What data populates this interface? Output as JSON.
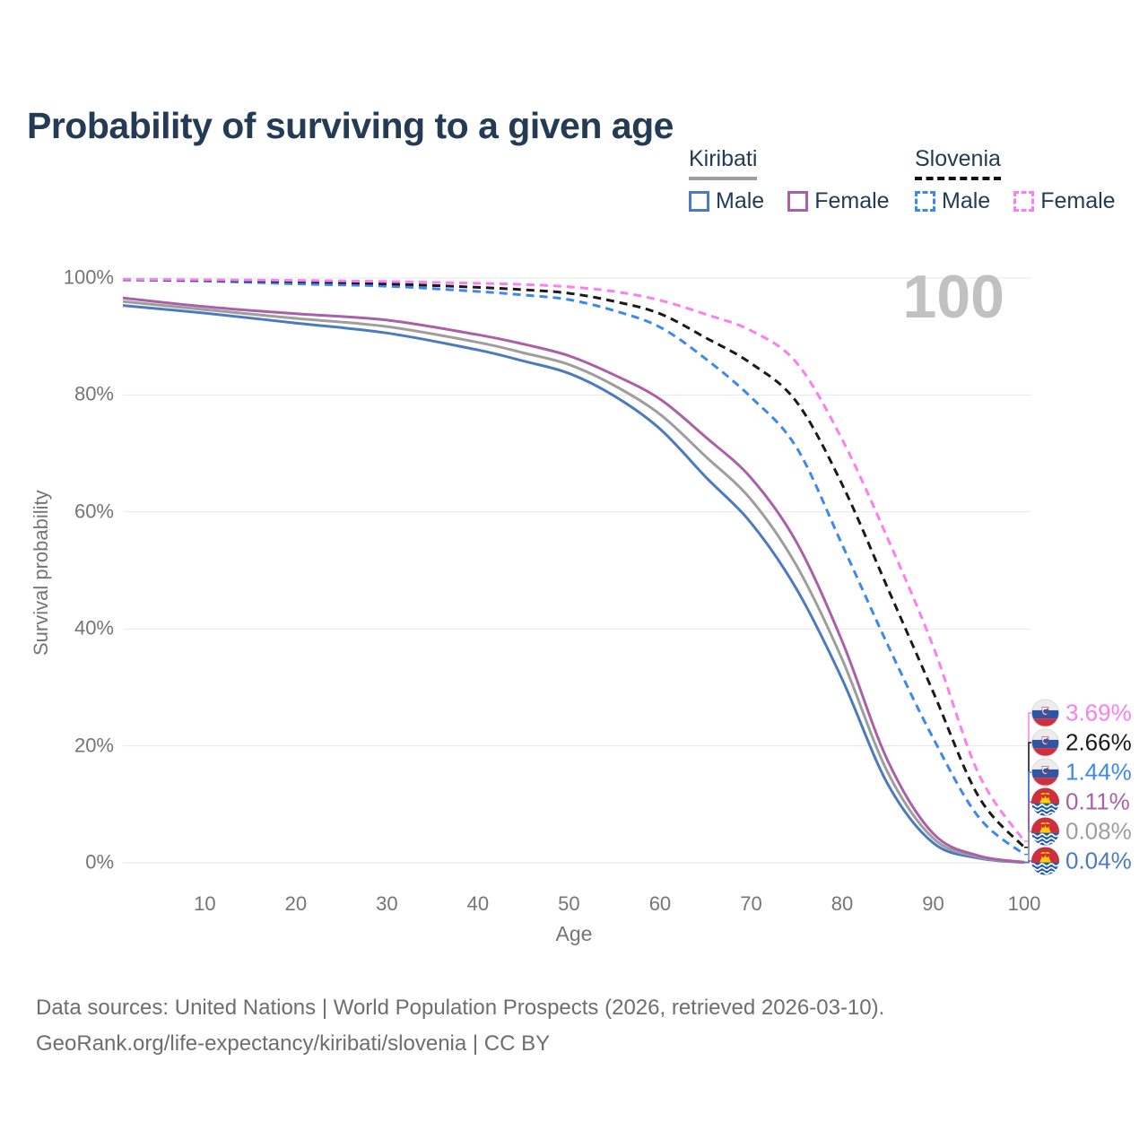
{
  "header": {
    "title": "Probability of surviving to a given age"
  },
  "watermark": "100",
  "legend": {
    "groups": [
      {
        "country": "Kiribati",
        "line_style": "solid",
        "items": [
          {
            "label": "Male",
            "color": "#4b7ac1"
          },
          {
            "label": "Female",
            "color": "#ab5fa8"
          }
        ]
      },
      {
        "country": "Slovenia",
        "line_style": "dashed",
        "items": [
          {
            "label": "Male",
            "color": "#3d87f0"
          },
          {
            "label": "Female",
            "color": "#fb7ef2"
          }
        ]
      }
    ]
  },
  "chart_data": {
    "type": "line",
    "title": "Probability of surviving to a given age",
    "xlabel": "Age",
    "ylabel": "Survival probability",
    "xlim": [
      1,
      100
    ],
    "ylim": [
      0,
      100
    ],
    "grid": "horizontal",
    "x_ticks": [
      {
        "label": "10",
        "v": 10
      },
      {
        "label": "20",
        "v": 20
      },
      {
        "label": "30",
        "v": 30
      },
      {
        "label": "40",
        "v": 40
      },
      {
        "label": "50",
        "v": 50
      },
      {
        "label": "60",
        "v": 60
      },
      {
        "label": "70",
        "v": 70
      },
      {
        "label": "80",
        "v": 80
      },
      {
        "label": "90",
        "v": 90
      },
      {
        "label": "100",
        "v": 100
      }
    ],
    "y_ticks": [
      {
        "label": "0%",
        "v": 0
      },
      {
        "label": "20%",
        "v": 20
      },
      {
        "label": "40%",
        "v": 40
      },
      {
        "label": "60%",
        "v": 60
      },
      {
        "label": "80%",
        "v": 80
      },
      {
        "label": "100%",
        "v": 100
      }
    ],
    "series": [
      {
        "id": "kiribati-male",
        "name": "Kiribati Male",
        "color": "#4b7ac1",
        "dash": false,
        "points": [
          [
            1,
            95.3
          ],
          [
            10,
            94.0
          ],
          [
            20,
            92.3
          ],
          [
            30,
            90.6
          ],
          [
            40,
            87.7
          ],
          [
            45,
            85.8
          ],
          [
            50,
            83.7
          ],
          [
            55,
            79.8
          ],
          [
            60,
            74.2
          ],
          [
            65,
            66.0
          ],
          [
            70,
            58.1
          ],
          [
            75,
            46.8
          ],
          [
            80,
            31.4
          ],
          [
            85,
            13.5
          ],
          [
            90,
            3.4
          ],
          [
            95,
            0.8
          ],
          [
            100,
            0.04
          ]
        ]
      },
      {
        "id": "kiribati-both",
        "name": "Kiribati",
        "color": "#9e9e9e",
        "dash": false,
        "points": [
          [
            1,
            96.0
          ],
          [
            10,
            94.6
          ],
          [
            20,
            93.1
          ],
          [
            30,
            91.7
          ],
          [
            40,
            89.0
          ],
          [
            45,
            87.2
          ],
          [
            50,
            85.2
          ],
          [
            55,
            81.6
          ],
          [
            60,
            76.7
          ],
          [
            65,
            69.5
          ],
          [
            70,
            62.1
          ],
          [
            75,
            50.8
          ],
          [
            80,
            34.8
          ],
          [
            85,
            15.5
          ],
          [
            90,
            4.2
          ],
          [
            95,
            1.0
          ],
          [
            100,
            0.08
          ]
        ]
      },
      {
        "id": "kiribati-female",
        "name": "Kiribati Female",
        "color": "#ab5fa8",
        "dash": false,
        "points": [
          [
            1,
            96.6
          ],
          [
            10,
            95.1
          ],
          [
            20,
            93.9
          ],
          [
            30,
            92.8
          ],
          [
            40,
            90.3
          ],
          [
            45,
            88.7
          ],
          [
            50,
            86.7
          ],
          [
            55,
            83.4
          ],
          [
            60,
            79.3
          ],
          [
            65,
            72.8
          ],
          [
            70,
            65.8
          ],
          [
            75,
            54.8
          ],
          [
            80,
            37.9
          ],
          [
            85,
            17.5
          ],
          [
            90,
            5.0
          ],
          [
            95,
            1.2
          ],
          [
            100,
            0.11
          ]
        ]
      },
      {
        "id": "slovenia-male",
        "name": "Slovenia Male",
        "color": "#3d87f0",
        "dash": true,
        "points": [
          [
            1,
            99.7
          ],
          [
            10,
            99.5
          ],
          [
            20,
            99.0
          ],
          [
            30,
            98.6
          ],
          [
            40,
            97.7
          ],
          [
            45,
            97.1
          ],
          [
            50,
            96.3
          ],
          [
            55,
            94.4
          ],
          [
            60,
            91.6
          ],
          [
            65,
            86.2
          ],
          [
            70,
            79.6
          ],
          [
            75,
            71.0
          ],
          [
            80,
            54.4
          ],
          [
            85,
            37.3
          ],
          [
            90,
            21.3
          ],
          [
            95,
            7.8
          ],
          [
            100,
            1.44
          ]
        ]
      },
      {
        "id": "slovenia-both",
        "name": "Slovenia",
        "color": "#1a1a1a",
        "dash": true,
        "points": [
          [
            1,
            99.75
          ],
          [
            10,
            99.6
          ],
          [
            20,
            99.4
          ],
          [
            30,
            99.0
          ],
          [
            40,
            98.4
          ],
          [
            45,
            98.0
          ],
          [
            50,
            97.4
          ],
          [
            55,
            96.0
          ],
          [
            60,
            93.9
          ],
          [
            65,
            89.8
          ],
          [
            70,
            85.4
          ],
          [
            75,
            78.8
          ],
          [
            80,
            64.7
          ],
          [
            85,
            47.0
          ],
          [
            90,
            29.2
          ],
          [
            95,
            11.3
          ],
          [
            100,
            2.66
          ]
        ]
      },
      {
        "id": "slovenia-female",
        "name": "Slovenia Female",
        "color": "#fb7ef2",
        "dash": true,
        "points": [
          [
            1,
            99.8
          ],
          [
            10,
            99.7
          ],
          [
            20,
            99.6
          ],
          [
            30,
            99.4
          ],
          [
            40,
            99.1
          ],
          [
            45,
            98.9
          ],
          [
            50,
            98.5
          ],
          [
            55,
            97.7
          ],
          [
            60,
            96.2
          ],
          [
            65,
            93.8
          ],
          [
            70,
            91.0
          ],
          [
            75,
            85.5
          ],
          [
            80,
            72.4
          ],
          [
            85,
            55.5
          ],
          [
            90,
            37.0
          ],
          [
            95,
            15.2
          ],
          [
            100,
            3.69
          ]
        ]
      }
    ],
    "end_labels": [
      {
        "series": "slovenia-female",
        "flag": "slovenia",
        "value": "3.69%",
        "pct": 3.69,
        "color": "#fb7ef2"
      },
      {
        "series": "slovenia-both",
        "flag": "slovenia",
        "value": "2.66%",
        "pct": 2.66,
        "color": "#1a1a1a"
      },
      {
        "series": "slovenia-male",
        "flag": "slovenia",
        "value": "1.44%",
        "pct": 1.44,
        "color": "#3d87f0"
      },
      {
        "series": "kiribati-female",
        "flag": "kiribati",
        "value": "0.11%",
        "pct": 0.11,
        "color": "#ab5fa8"
      },
      {
        "series": "kiribati-both",
        "flag": "kiribati",
        "value": "0.08%",
        "pct": 0.08,
        "color": "#9e9e9e"
      },
      {
        "series": "kiribati-male",
        "flag": "kiribati",
        "value": "0.04%",
        "pct": 0.04,
        "color": "#4b7ac1"
      }
    ]
  },
  "footer": {
    "line1": "Data sources: United Nations | World Population Prospects (2026, retrieved 2026-03-10).",
    "line2": "GeoRank.org/life-expectancy/kiribati/slovenia | CC BY"
  }
}
